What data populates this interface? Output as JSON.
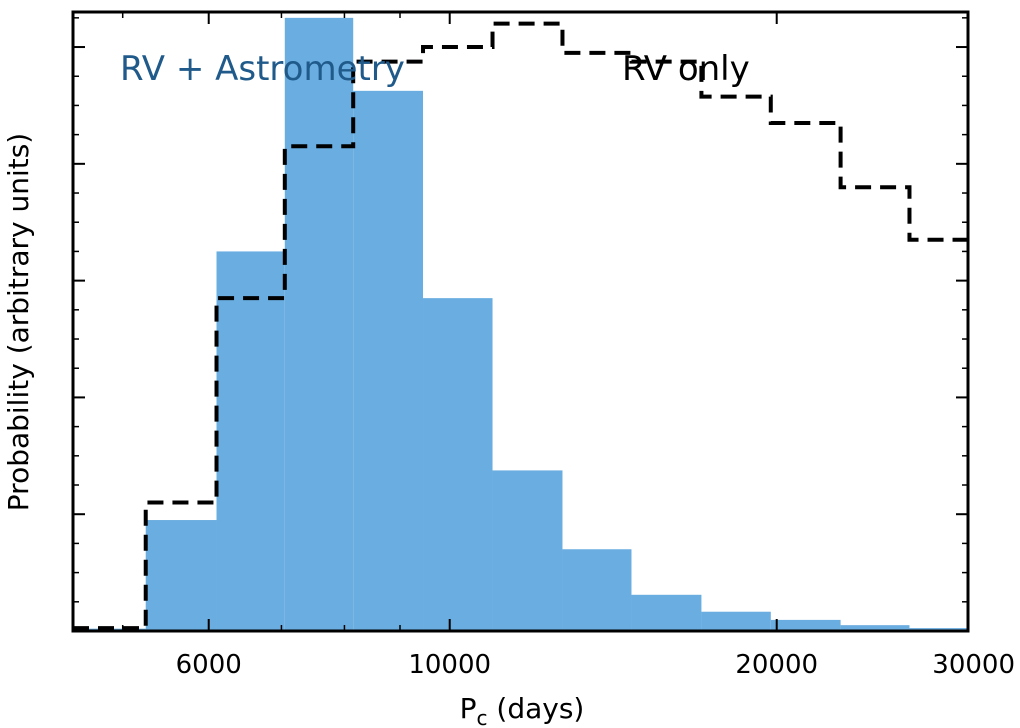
{
  "chart_data": {
    "type": "bar",
    "xscale": "log",
    "xlim": [
      4500,
      30000
    ],
    "ylim": [
      0,
      1.06
    ],
    "xlabel_main": "P",
    "xlabel_sub": "c",
    "xlabel_rest": " (days)",
    "ylabel": "Probability (arbitrary units)",
    "xticks": [
      6000,
      10000,
      20000,
      30000
    ],
    "xtick_labels": [
      "6000",
      "10000",
      "20000",
      "30000"
    ],
    "bin_edges": [
      4500,
      5250,
      6100,
      7050,
      8150,
      9450,
      10950,
      12700,
      14700,
      17050,
      19750,
      22900,
      26500,
      30000
    ],
    "series": [
      {
        "name": "RV + Astrometry",
        "style": "filled",
        "color": "#6aade0",
        "text_color": "#1f5a8a",
        "values": [
          0.004,
          0.19,
          0.65,
          1.05,
          0.925,
          0.57,
          0.275,
          0.14,
          0.062,
          0.033,
          0.019,
          0.01,
          0.005
        ]
      },
      {
        "name": "RV only",
        "style": "dashed",
        "color": "#000000",
        "text_color": "#000000",
        "values": [
          0.005,
          0.22,
          0.57,
          0.83,
          0.975,
          1.0,
          1.04,
          0.99,
          0.975,
          0.915,
          0.87,
          0.76,
          0.67
        ]
      }
    ]
  }
}
